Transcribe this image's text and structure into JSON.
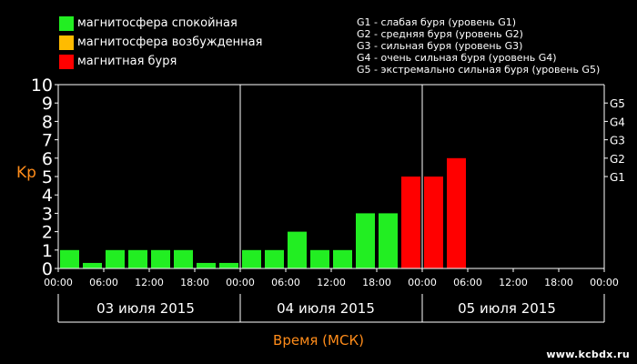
{
  "legend": [
    {
      "label": "магнитосфера спокойная",
      "color": "#22ee22"
    },
    {
      "label": "магнитосфера возбужденная",
      "color": "#ffbb00"
    },
    {
      "label": "магнитная буря",
      "color": "#ff0000"
    }
  ],
  "storm_levels": [
    "G1 - слабая буря (уровень G1)",
    "G2 - средняя буря (уровень G2)",
    "G3 - сильная буря (уровень G3)",
    "G4 - очень сильная буря (уровень G4)",
    "G5 - экстремально сильная буря (уровень G5)"
  ],
  "watermark": "www.kcbdx.ru",
  "colors": {
    "quiet": "#22ee22",
    "active": "#ffbb00",
    "storm": "#ff0000",
    "axis": "#ffffff",
    "title": "#ff8c1a"
  },
  "chart_data": {
    "type": "bar",
    "ylabel": "Kp",
    "xlabel": "Время (МСК)",
    "ylim": [
      0,
      10
    ],
    "yticks": [
      "0",
      "1",
      "2",
      "3",
      "4",
      "5",
      "6",
      "7",
      "8",
      "9",
      "10"
    ],
    "g_ticks": [
      {
        "label": "G1",
        "value": 5
      },
      {
        "label": "G2",
        "value": 6
      },
      {
        "label": "G3",
        "value": 7
      },
      {
        "label": "G4",
        "value": 8
      },
      {
        "label": "G5",
        "value": 9
      }
    ],
    "time_ticks": [
      "00:00",
      "06:00",
      "12:00",
      "18:00",
      "00:00",
      "06:00",
      "12:00",
      "18:00",
      "00:00",
      "06:00",
      "12:00",
      "18:00",
      "00:00"
    ],
    "days": [
      "03 июля 2015",
      "04 июля 2015",
      "05 июля 2015"
    ],
    "bars": [
      {
        "value": 1,
        "level": "quiet"
      },
      {
        "value": 0.3,
        "level": "quiet"
      },
      {
        "value": 1,
        "level": "quiet"
      },
      {
        "value": 1,
        "level": "quiet"
      },
      {
        "value": 1,
        "level": "quiet"
      },
      {
        "value": 1,
        "level": "quiet"
      },
      {
        "value": 0.3,
        "level": "quiet"
      },
      {
        "value": 0.3,
        "level": "quiet"
      },
      {
        "value": 1,
        "level": "quiet"
      },
      {
        "value": 1,
        "level": "quiet"
      },
      {
        "value": 2,
        "level": "quiet"
      },
      {
        "value": 1,
        "level": "quiet"
      },
      {
        "value": 1,
        "level": "quiet"
      },
      {
        "value": 3,
        "level": "quiet"
      },
      {
        "value": 3,
        "level": "quiet"
      },
      {
        "value": 5,
        "level": "storm"
      },
      {
        "value": 5,
        "level": "storm"
      },
      {
        "value": 6,
        "level": "storm"
      }
    ]
  }
}
